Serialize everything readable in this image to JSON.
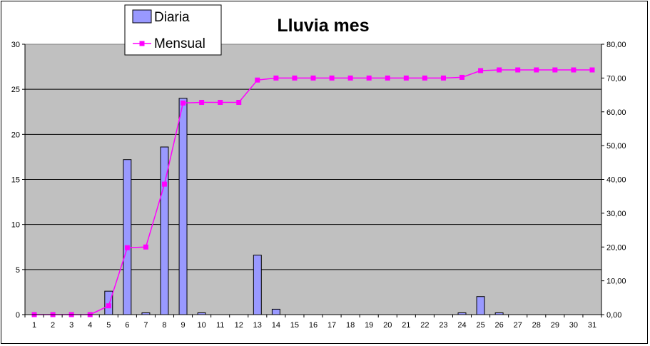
{
  "chart_data": {
    "type": "bar",
    "title": "Lluvia mes",
    "xlabel": "",
    "ylabel": "",
    "categories": [
      "1",
      "2",
      "3",
      "4",
      "5",
      "6",
      "7",
      "8",
      "9",
      "10",
      "11",
      "12",
      "13",
      "14",
      "15",
      "16",
      "17",
      "18",
      "19",
      "20",
      "21",
      "22",
      "23",
      "24",
      "25",
      "26",
      "27",
      "28",
      "29",
      "30",
      "31"
    ],
    "series": [
      {
        "name": "Diaria",
        "type": "bar",
        "axis": "left",
        "color": "#9999FF",
        "values": [
          0,
          0,
          0,
          0,
          2.6,
          17.2,
          0.2,
          18.6,
          24.0,
          0.2,
          0,
          0,
          6.6,
          0.6,
          0,
          0,
          0,
          0,
          0,
          0,
          0,
          0,
          0,
          0.2,
          2.0,
          0.2,
          0,
          0,
          0,
          0,
          0
        ]
      },
      {
        "name": "Mensual",
        "type": "line",
        "axis": "right",
        "color": "#FF00FF",
        "values": [
          0,
          0,
          0,
          0,
          2.6,
          19.8,
          20.0,
          38.6,
          62.6,
          62.8,
          62.8,
          62.8,
          69.4,
          70.0,
          70.0,
          70.0,
          70.0,
          70.0,
          70.0,
          70.0,
          70.0,
          70.0,
          70.0,
          70.2,
          72.2,
          72.4,
          72.4,
          72.4,
          72.4,
          72.4,
          72.4
        ]
      }
    ],
    "ylim": [
      0,
      30
    ],
    "yticks": [
      "0",
      "5",
      "10",
      "15",
      "20",
      "25",
      "30"
    ],
    "y2lim": [
      0,
      80
    ],
    "y2ticks": [
      "0,00",
      "10,00",
      "20,00",
      "30,00",
      "40,00",
      "50,00",
      "60,00",
      "70,00",
      "80,00"
    ],
    "grid": true,
    "legend_position": "top-left",
    "plot_background": "#C0C0C0"
  }
}
